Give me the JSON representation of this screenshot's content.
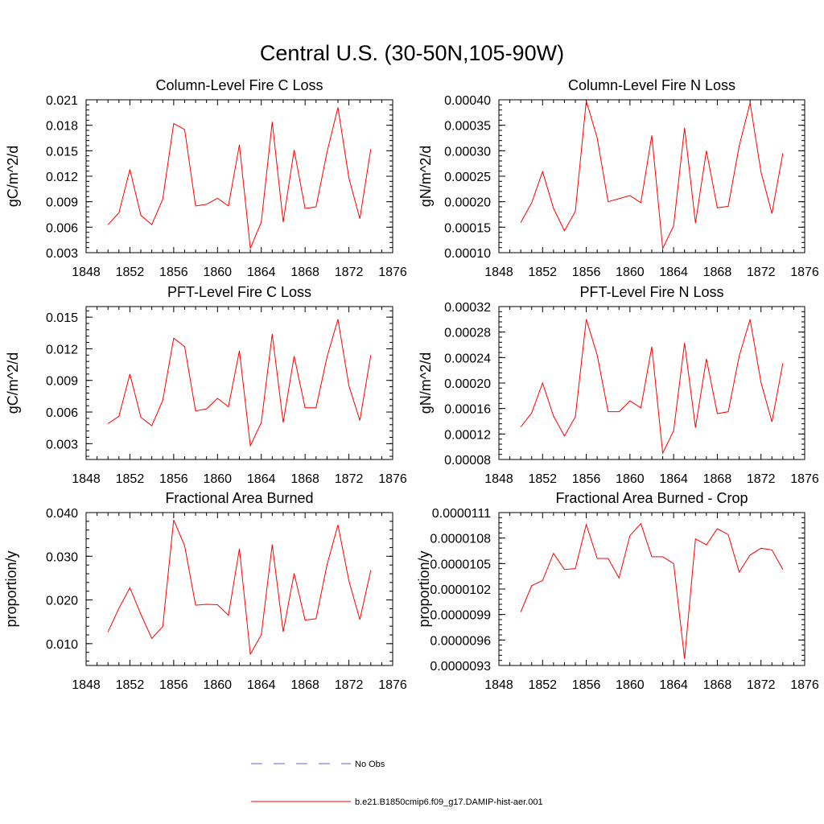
{
  "figure": {
    "title": "Central U.S. (30-50N,105-90W)"
  },
  "legend": {
    "entries": [
      {
        "label": "No Obs",
        "color": "#6666cc",
        "dash": "dashed"
      },
      {
        "label": "b.e21.B1850cmip6.f09_g17.DAMIP-hist-aer.001",
        "color": "#ff0000",
        "dash": "solid"
      }
    ]
  },
  "colors": {
    "series": "#ff0000",
    "axis": "#000000"
  },
  "chart_data": [
    {
      "type": "line",
      "title": "Column-Level Fire C Loss",
      "ylabel": "gC/m^2/d",
      "xlim": [
        1848,
        1876
      ],
      "xticks": [
        "1848",
        "1852",
        "1856",
        "1860",
        "1864",
        "1868",
        "1872",
        "1876"
      ],
      "ylim": [
        0.003,
        0.021
      ],
      "yticks": [
        "0.003",
        "0.006",
        "0.009",
        "0.012",
        "0.015",
        "0.018",
        "0.021"
      ],
      "x": [
        1850,
        1851,
        1852,
        1853,
        1854,
        1855,
        1856,
        1857,
        1858,
        1859,
        1860,
        1861,
        1862,
        1863,
        1864,
        1865,
        1866,
        1867,
        1868,
        1869,
        1870,
        1871,
        1872,
        1873,
        1874
      ],
      "series": [
        {
          "values": [
            0.0063,
            0.0077,
            0.0128,
            0.0074,
            0.0063,
            0.0093,
            0.0182,
            0.0175,
            0.0085,
            0.0087,
            0.0094,
            0.0085,
            0.0157,
            0.0035,
            0.0066,
            0.0184,
            0.0066,
            0.0151,
            0.0082,
            0.0084,
            0.0148,
            0.0201,
            0.0118,
            0.007,
            0.0152
          ]
        }
      ]
    },
    {
      "type": "line",
      "title": "Column-Level Fire N Loss",
      "ylabel": "gN/m^2/d",
      "xlim": [
        1848,
        1876
      ],
      "xticks": [
        "1848",
        "1852",
        "1856",
        "1860",
        "1864",
        "1868",
        "1872",
        "1876"
      ],
      "ylim": [
        0.0001,
        0.0004
      ],
      "yticks": [
        "0.00010",
        "0.00015",
        "0.00020",
        "0.00025",
        "0.00030",
        "0.00035",
        "0.00040"
      ],
      "x": [
        1850,
        1851,
        1852,
        1853,
        1854,
        1855,
        1856,
        1857,
        1858,
        1859,
        1860,
        1861,
        1862,
        1863,
        1864,
        1865,
        1866,
        1867,
        1868,
        1869,
        1870,
        1871,
        1872,
        1873,
        1874
      ],
      "series": [
        {
          "values": [
            0.000159,
            0.000198,
            0.000259,
            0.000187,
            0.000143,
            0.000181,
            0.000398,
            0.000325,
            0.0002,
            0.000206,
            0.000212,
            0.000198,
            0.00033,
            0.000108,
            0.000153,
            0.000345,
            0.000158,
            0.0003,
            0.000188,
            0.000191,
            0.000309,
            0.000394,
            0.000258,
            0.000177,
            0.000295
          ]
        }
      ]
    },
    {
      "type": "line",
      "title": "PFT-Level Fire C Loss",
      "ylabel": "gC/m^2/d",
      "xlim": [
        1848,
        1876
      ],
      "xticks": [
        "1848",
        "1852",
        "1856",
        "1860",
        "1864",
        "1868",
        "1872",
        "1876"
      ],
      "ylim": [
        0.0015,
        0.016
      ],
      "yticks": [
        "0.003",
        "0.006",
        "0.009",
        "0.012",
        "0.015"
      ],
      "x": [
        1850,
        1851,
        1852,
        1853,
        1854,
        1855,
        1856,
        1857,
        1858,
        1859,
        1860,
        1861,
        1862,
        1863,
        1864,
        1865,
        1866,
        1867,
        1868,
        1869,
        1870,
        1871,
        1872,
        1873,
        1874
      ],
      "series": [
        {
          "values": [
            0.0049,
            0.0056,
            0.0096,
            0.0055,
            0.0047,
            0.0071,
            0.013,
            0.0122,
            0.0061,
            0.0063,
            0.0073,
            0.0065,
            0.0118,
            0.0028,
            0.005,
            0.0134,
            0.005,
            0.0113,
            0.0064,
            0.0064,
            0.0112,
            0.0148,
            0.0085,
            0.0052,
            0.0114
          ]
        }
      ]
    },
    {
      "type": "line",
      "title": "PFT-Level Fire N Loss",
      "ylabel": "gN/m^2/d",
      "xlim": [
        1848,
        1876
      ],
      "xticks": [
        "1848",
        "1852",
        "1856",
        "1860",
        "1864",
        "1868",
        "1872",
        "1876"
      ],
      "ylim": [
        8e-05,
        0.00032
      ],
      "yticks": [
        "0.00008",
        "0.00012",
        "0.00016",
        "0.00020",
        "0.00024",
        "0.00028",
        "0.00032"
      ],
      "x": [
        1850,
        1851,
        1852,
        1853,
        1854,
        1855,
        1856,
        1857,
        1858,
        1859,
        1860,
        1861,
        1862,
        1863,
        1864,
        1865,
        1866,
        1867,
        1868,
        1869,
        1870,
        1871,
        1872,
        1873,
        1874
      ],
      "series": [
        {
          "values": [
            0.000131,
            0.000153,
            0.0002,
            0.000148,
            0.000117,
            0.000147,
            0.0003,
            0.000244,
            0.000155,
            0.000155,
            0.000172,
            0.000161,
            0.000257,
            9e-05,
            0.000125,
            0.000263,
            0.00013,
            0.000238,
            0.000152,
            0.000155,
            0.000242,
            0.0003,
            0.000201,
            0.000139,
            0.000231
          ]
        }
      ]
    },
    {
      "type": "line",
      "title": "Fractional Area Burned",
      "ylabel": "proportion/y",
      "xlim": [
        1848,
        1876
      ],
      "xticks": [
        "1848",
        "1852",
        "1856",
        "1860",
        "1864",
        "1868",
        "1872",
        "1876"
      ],
      "ylim": [
        0.005,
        0.04
      ],
      "yticks": [
        "0.010",
        "0.020",
        "0.030",
        "0.040"
      ],
      "x": [
        1850,
        1851,
        1852,
        1853,
        1854,
        1855,
        1856,
        1857,
        1858,
        1859,
        1860,
        1861,
        1862,
        1863,
        1864,
        1865,
        1866,
        1867,
        1868,
        1869,
        1870,
        1871,
        1872,
        1873,
        1874
      ],
      "series": [
        {
          "values": [
            0.0127,
            0.0181,
            0.0228,
            0.0167,
            0.0112,
            0.0139,
            0.0383,
            0.0324,
            0.0188,
            0.019,
            0.0189,
            0.0165,
            0.0317,
            0.0076,
            0.012,
            0.0327,
            0.0127,
            0.0261,
            0.0154,
            0.0157,
            0.028,
            0.0372,
            0.0244,
            0.0155,
            0.0268
          ]
        }
      ]
    },
    {
      "type": "line",
      "title": "Fractional Area Burned - Crop",
      "ylabel": "proportion/y",
      "xlim": [
        1848,
        1876
      ],
      "xticks": [
        "1848",
        "1852",
        "1856",
        "1860",
        "1864",
        "1868",
        "1872",
        "1876"
      ],
      "ylim": [
        9.3e-06,
        1.11e-05
      ],
      "yticks": [
        "0.0000093",
        "0.0000096",
        "0.0000099",
        "0.0000102",
        "0.0000105",
        "0.0000108",
        "0.0000111"
      ],
      "x": [
        1850,
        1851,
        1852,
        1853,
        1854,
        1855,
        1856,
        1857,
        1858,
        1859,
        1860,
        1861,
        1862,
        1863,
        1864,
        1865,
        1866,
        1867,
        1868,
        1869,
        1870,
        1871,
        1872,
        1873,
        1874
      ],
      "series": [
        {
          "values": [
            9.93e-06,
            1.024e-05,
            1.03e-05,
            1.062e-05,
            1.043e-05,
            1.044e-05,
            1.096e-05,
            1.056e-05,
            1.056e-05,
            1.033e-05,
            1.083e-05,
            1.097e-05,
            1.058e-05,
            1.058e-05,
            1.05e-05,
            9.38e-06,
            1.079e-05,
            1.072e-05,
            1.091e-05,
            1.084e-05,
            1.04e-05,
            1.06e-05,
            1.068e-05,
            1.066e-05,
            1.043e-05
          ]
        }
      ]
    }
  ]
}
